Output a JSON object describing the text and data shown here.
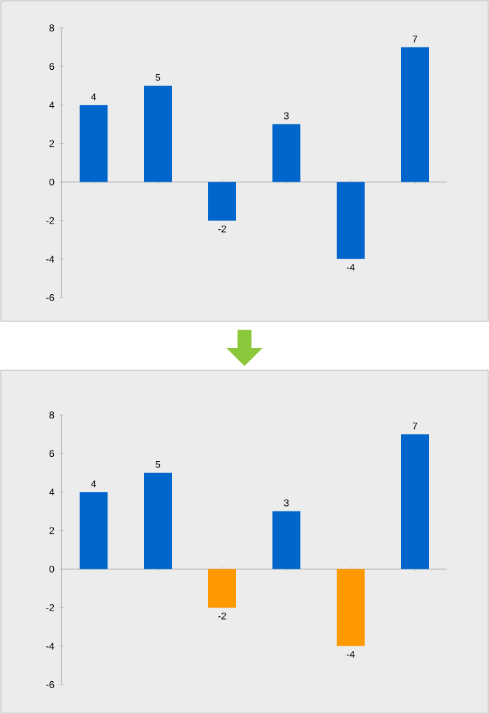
{
  "chart_data": [
    {
      "type": "bar",
      "categories": [
        null,
        null,
        null,
        null,
        null,
        null
      ],
      "values": [
        4,
        5,
        -2,
        3,
        -4,
        7
      ],
      "color": "#0066cc",
      "ylim": [
        -6,
        8
      ],
      "yticks": [
        -6,
        -4,
        -2,
        0,
        2,
        4,
        6,
        8
      ],
      "data_labels": true
    },
    {
      "type": "bar",
      "categories": [
        null,
        null,
        null,
        null,
        null,
        null
      ],
      "values": [
        4,
        5,
        -2,
        3,
        -4,
        7
      ],
      "colors": [
        "#0066cc",
        "#0066cc",
        "#ff9900",
        "#0066cc",
        "#ff9900",
        "#0066cc"
      ],
      "ylim": [
        -6,
        8
      ],
      "yticks": [
        -6,
        -4,
        -2,
        0,
        2,
        4,
        6,
        8
      ],
      "data_labels": true
    }
  ]
}
